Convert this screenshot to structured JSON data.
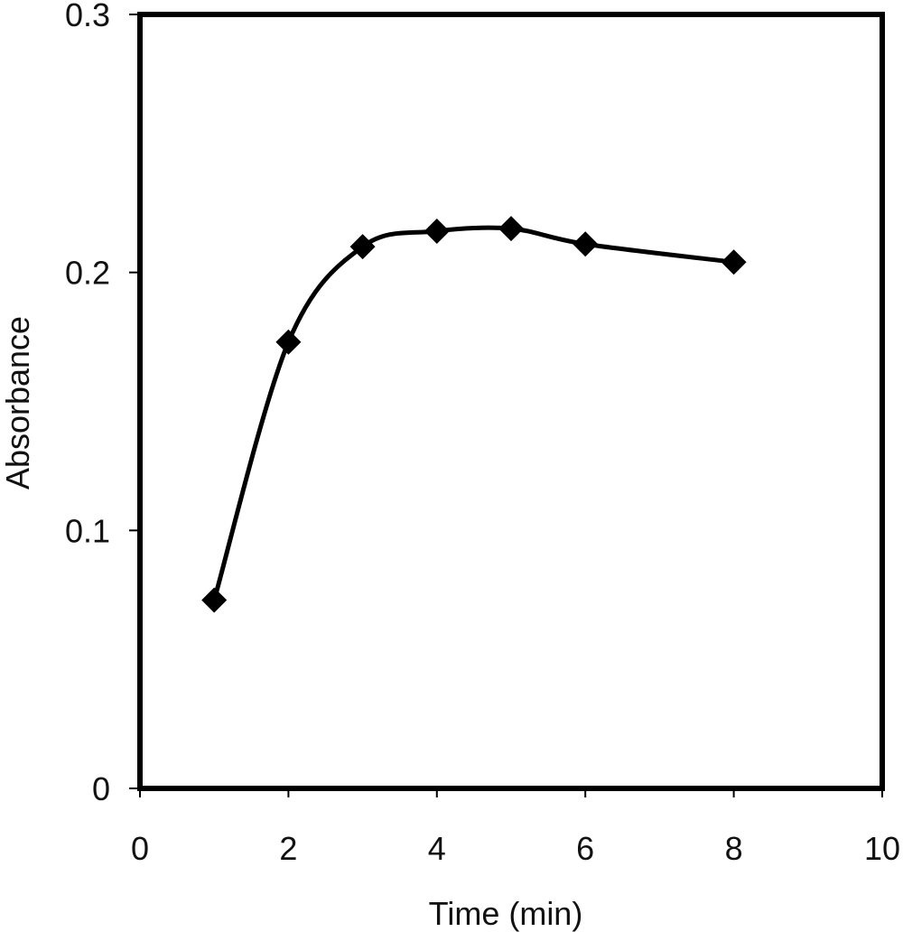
{
  "chart_data": {
    "type": "line",
    "title": "",
    "xlabel": "Time (min)",
    "ylabel": "Absorbance",
    "xlim": [
      0,
      10
    ],
    "ylim": [
      0,
      0.3
    ],
    "xticks": [
      "0",
      "2",
      "4",
      "6",
      "8",
      "10"
    ],
    "yticks": [
      "0",
      "0.1",
      "0.2",
      "0.3"
    ],
    "grid": false,
    "legend": "none",
    "smooth": true,
    "marker": "diamond",
    "line_color": "#000000",
    "series": [
      {
        "x": [
          1,
          2,
          3,
          4,
          5,
          6,
          8
        ],
        "y": [
          0.073,
          0.173,
          0.21,
          0.216,
          0.217,
          0.211,
          0.204
        ]
      }
    ]
  }
}
